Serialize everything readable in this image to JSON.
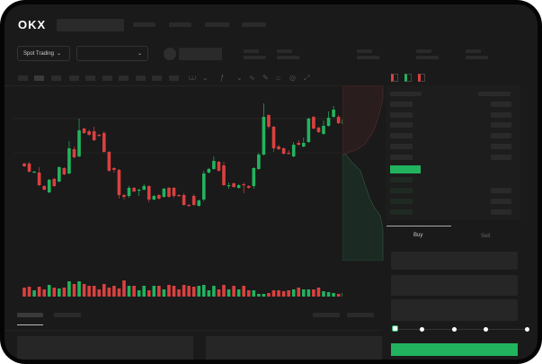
{
  "header": {
    "logo": "OKX"
  },
  "toolbar": {
    "market_type": "Spot Trading"
  },
  "trade": {
    "tabs": [
      "Buy",
      "Sell"
    ],
    "active_tab": "Buy"
  },
  "colors": {
    "up": "#22b35e",
    "down": "#d9413f",
    "background": "#1a1a1a",
    "accent": "#21b35e"
  },
  "leverage_slider": {
    "value_percent": 0,
    "stops": 5
  },
  "candles": [
    [
      118,
      115,
      119,
      114
    ],
    [
      118,
      109,
      120,
      108
    ],
    [
      108,
      109,
      110,
      108
    ],
    [
      108,
      94,
      114,
      93
    ],
    [
      93,
      89,
      94,
      88
    ],
    [
      86,
      100,
      101,
      85
    ],
    [
      101,
      93,
      102,
      92
    ],
    [
      98,
      114,
      115,
      97
    ],
    [
      113,
      106,
      114,
      105
    ],
    [
      107,
      135,
      143,
      106
    ],
    [
      134,
      125,
      137,
      124
    ],
    [
      126,
      155,
      168,
      125
    ],
    [
      157,
      152,
      158,
      151
    ],
    [
      154,
      150,
      156,
      149
    ],
    [
      154,
      144,
      159,
      143
    ],
    [
      150,
      149,
      151,
      148
    ],
    [
      152,
      131,
      154,
      130
    ],
    [
      131,
      110,
      132,
      109
    ],
    [
      113,
      111,
      114,
      108
    ],
    [
      111,
      83,
      112,
      79
    ],
    [
      83,
      81,
      84,
      78
    ],
    [
      82,
      91,
      93,
      80
    ],
    [
      91,
      87,
      92,
      86
    ],
    [
      88,
      89,
      90,
      82
    ],
    [
      89,
      93,
      95,
      88
    ],
    [
      93,
      78,
      94,
      75
    ],
    [
      78,
      82,
      83,
      77
    ],
    [
      83,
      79,
      84,
      78
    ],
    [
      81,
      90,
      91,
      80
    ],
    [
      91,
      81,
      92,
      80
    ],
    [
      91,
      82,
      92,
      80
    ],
    [
      83,
      82,
      84,
      81
    ],
    [
      83,
      72,
      85,
      71
    ],
    [
      72,
      71,
      73,
      70
    ],
    [
      82,
      72,
      84,
      71
    ],
    [
      71,
      77,
      78,
      70
    ],
    [
      78,
      107,
      110,
      76
    ],
    [
      108,
      112,
      113,
      107
    ],
    [
      112,
      121,
      126,
      111
    ],
    [
      120,
      110,
      121,
      109
    ],
    [
      116,
      94,
      120,
      93
    ],
    [
      93,
      94,
      97,
      90
    ],
    [
      96,
      92,
      97,
      91
    ],
    [
      91,
      94,
      95,
      90
    ],
    [
      95,
      94,
      97,
      85
    ],
    [
      93,
      91,
      94,
      90
    ],
    [
      93,
      113,
      114,
      90
    ],
    [
      112,
      128,
      130,
      111
    ],
    [
      128,
      170,
      185,
      127
    ],
    [
      172,
      159,
      173,
      157
    ],
    [
      159,
      135,
      160,
      131
    ],
    [
      137,
      134,
      139,
      133
    ],
    [
      135,
      129,
      136,
      128
    ],
    [
      130,
      129,
      133,
      128
    ],
    [
      126,
      139,
      142,
      125
    ],
    [
      141,
      139,
      144,
      138
    ],
    [
      137,
      141,
      147,
      136
    ],
    [
      142,
      168,
      169,
      141
    ],
    [
      170,
      157,
      171,
      156
    ],
    [
      158,
      153,
      159,
      152
    ],
    [
      151,
      160,
      166,
      150
    ],
    [
      160,
      169,
      176,
      159
    ],
    [
      170,
      178,
      182,
      169
    ],
    [
      170,
      163,
      172,
      162
    ],
    [
      162,
      167,
      172,
      161
    ]
  ],
  "volumes": [
    10,
    11,
    7,
    11,
    8,
    13,
    10,
    9,
    10,
    17,
    14,
    17,
    14,
    12,
    12,
    8,
    14,
    10,
    12,
    9,
    18,
    12,
    12,
    7,
    12,
    7,
    12,
    12,
    8,
    13,
    12,
    8,
    13,
    12,
    11,
    12,
    13,
    7,
    12,
    8,
    13,
    8,
    12,
    8,
    12,
    7,
    7,
    3,
    3,
    4,
    7,
    7,
    6,
    7,
    8,
    10,
    8,
    8,
    8,
    10,
    6,
    5,
    4,
    3,
    4
  ]
}
